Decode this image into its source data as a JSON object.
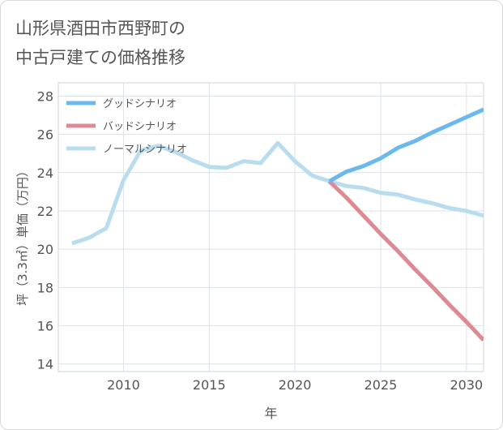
{
  "title_line1": "山形県酒田市西野町の",
  "title_line2": "中古戸建ての価格推移",
  "chart_data": {
    "type": "line",
    "xlabel": "年",
    "ylabel": "坪（3.3㎡）単価（万円）",
    "xlim": [
      2006.2,
      2031
    ],
    "ylim": [
      13.6,
      28.7
    ],
    "xticks": [
      2010,
      2015,
      2020,
      2025,
      2030
    ],
    "yticks": [
      14,
      16,
      18,
      20,
      22,
      24,
      26,
      28
    ],
    "grid": true,
    "legend_position": "top-left",
    "series": [
      {
        "name": "グッドシナリオ",
        "color": "#6bb8ec",
        "x": [
          2022,
          2023,
          2024,
          2025,
          2026,
          2027,
          2028,
          2029,
          2030,
          2031
        ],
        "y": [
          23.55,
          24.05,
          24.35,
          24.75,
          25.3,
          25.65,
          26.1,
          26.5,
          26.9,
          27.3
        ]
      },
      {
        "name": "バッドシナリオ",
        "color": "#dd8a92",
        "x": [
          2022,
          2023,
          2024,
          2025,
          2026,
          2027,
          2028,
          2029,
          2030,
          2031
        ],
        "y": [
          23.55,
          22.7,
          21.75,
          20.8,
          19.9,
          18.95,
          18.05,
          17.1,
          16.2,
          15.25
        ]
      },
      {
        "name": "ノーマルシナリオ",
        "color": "#b9ddee",
        "x": [
          2007,
          2008,
          2009,
          2010,
          2011,
          2012,
          2013,
          2014,
          2015,
          2016,
          2017,
          2018,
          2019,
          2020,
          2021,
          2022,
          2023,
          2024,
          2025,
          2026,
          2027,
          2028,
          2029,
          2030,
          2031
        ],
        "y": [
          20.3,
          20.6,
          21.1,
          23.6,
          25.15,
          25.4,
          25.1,
          24.65,
          24.3,
          24.25,
          24.6,
          24.5,
          25.55,
          24.6,
          23.85,
          23.55,
          23.3,
          23.2,
          22.95,
          22.85,
          22.6,
          22.4,
          22.15,
          22.0,
          21.75
        ]
      }
    ]
  }
}
